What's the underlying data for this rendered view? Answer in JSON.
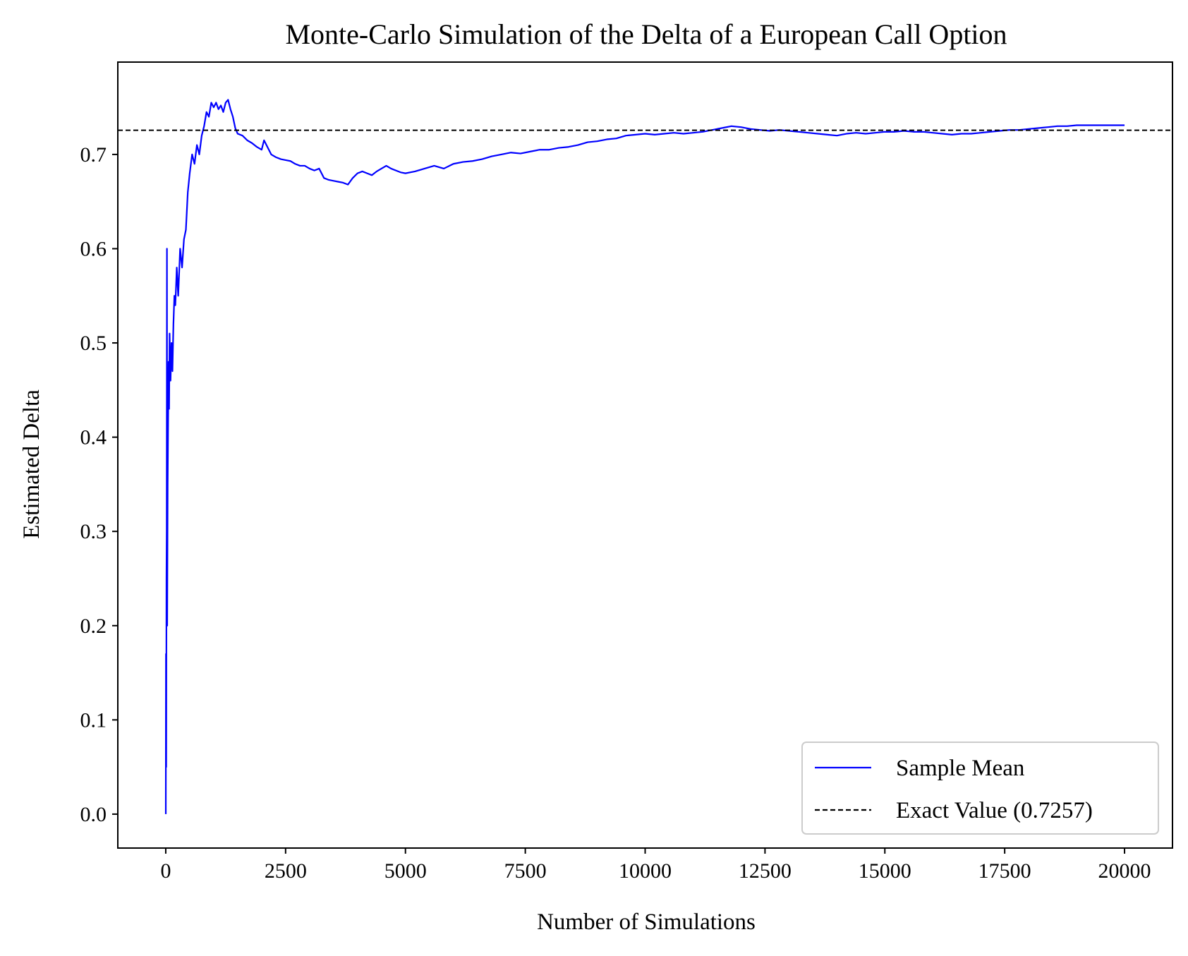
{
  "chart_data": {
    "type": "line",
    "title": "Monte-Carlo Simulation of the Delta of a European Call Option",
    "xlabel": "Number of Simulations",
    "ylabel": "Estimated Delta",
    "xlim": [
      -1000,
      21000
    ],
    "ylim": [
      -0.036,
      0.798
    ],
    "xticks": [
      0,
      2500,
      5000,
      7500,
      10000,
      12500,
      15000,
      17500,
      20000
    ],
    "xtick_labels": [
      "0",
      "2500",
      "5000",
      "7500",
      "10000",
      "12500",
      "15000",
      "17500",
      "20000"
    ],
    "yticks": [
      0.0,
      0.1,
      0.2,
      0.3,
      0.4,
      0.5,
      0.6,
      0.7
    ],
    "ytick_labels": [
      "0.0",
      "0.1",
      "0.2",
      "0.3",
      "0.4",
      "0.5",
      "0.6",
      "0.7"
    ],
    "grid": false,
    "legend_position": "lower-right",
    "series": [
      {
        "name": "Sample Mean",
        "color": "#0000ff",
        "style": "solid",
        "points": [
          [
            1,
            0.0
          ],
          [
            5,
            0.17
          ],
          [
            10,
            0.05
          ],
          [
            15,
            0.25
          ],
          [
            20,
            0.3
          ],
          [
            25,
            0.6
          ],
          [
            30,
            0.2
          ],
          [
            40,
            0.35
          ],
          [
            50,
            0.42
          ],
          [
            60,
            0.48
          ],
          [
            70,
            0.43
          ],
          [
            80,
            0.51
          ],
          [
            100,
            0.46
          ],
          [
            120,
            0.5
          ],
          [
            140,
            0.47
          ],
          [
            160,
            0.52
          ],
          [
            180,
            0.55
          ],
          [
            200,
            0.54
          ],
          [
            230,
            0.58
          ],
          [
            260,
            0.55
          ],
          [
            300,
            0.6
          ],
          [
            340,
            0.58
          ],
          [
            380,
            0.61
          ],
          [
            420,
            0.62
          ],
          [
            460,
            0.66
          ],
          [
            500,
            0.68
          ],
          [
            550,
            0.7
          ],
          [
            600,
            0.69
          ],
          [
            650,
            0.71
          ],
          [
            700,
            0.7
          ],
          [
            750,
            0.72
          ],
          [
            800,
            0.73
          ],
          [
            850,
            0.745
          ],
          [
            900,
            0.74
          ],
          [
            950,
            0.755
          ],
          [
            1000,
            0.75
          ],
          [
            1050,
            0.755
          ],
          [
            1100,
            0.748
          ],
          [
            1150,
            0.752
          ],
          [
            1200,
            0.745
          ],
          [
            1250,
            0.755
          ],
          [
            1300,
            0.758
          ],
          [
            1350,
            0.748
          ],
          [
            1400,
            0.74
          ],
          [
            1450,
            0.728
          ],
          [
            1500,
            0.722
          ],
          [
            1600,
            0.72
          ],
          [
            1700,
            0.715
          ],
          [
            1800,
            0.712
          ],
          [
            1900,
            0.708
          ],
          [
            2000,
            0.705
          ],
          [
            2050,
            0.715
          ],
          [
            2100,
            0.71
          ],
          [
            2200,
            0.7
          ],
          [
            2300,
            0.697
          ],
          [
            2400,
            0.695
          ],
          [
            2500,
            0.694
          ],
          [
            2600,
            0.693
          ],
          [
            2700,
            0.69
          ],
          [
            2800,
            0.688
          ],
          [
            2900,
            0.688
          ],
          [
            3000,
            0.685
          ],
          [
            3100,
            0.683
          ],
          [
            3200,
            0.685
          ],
          [
            3300,
            0.675
          ],
          [
            3400,
            0.673
          ],
          [
            3500,
            0.672
          ],
          [
            3600,
            0.671
          ],
          [
            3700,
            0.67
          ],
          [
            3800,
            0.668
          ],
          [
            3900,
            0.675
          ],
          [
            4000,
            0.68
          ],
          [
            4100,
            0.682
          ],
          [
            4200,
            0.68
          ],
          [
            4300,
            0.678
          ],
          [
            4400,
            0.682
          ],
          [
            4500,
            0.685
          ],
          [
            4600,
            0.688
          ],
          [
            4700,
            0.685
          ],
          [
            4800,
            0.683
          ],
          [
            4900,
            0.681
          ],
          [
            5000,
            0.68
          ],
          [
            5200,
            0.682
          ],
          [
            5400,
            0.685
          ],
          [
            5600,
            0.688
          ],
          [
            5800,
            0.685
          ],
          [
            6000,
            0.69
          ],
          [
            6200,
            0.692
          ],
          [
            6400,
            0.693
          ],
          [
            6600,
            0.695
          ],
          [
            6800,
            0.698
          ],
          [
            7000,
            0.7
          ],
          [
            7200,
            0.702
          ],
          [
            7400,
            0.701
          ],
          [
            7600,
            0.703
          ],
          [
            7800,
            0.705
          ],
          [
            8000,
            0.705
          ],
          [
            8200,
            0.707
          ],
          [
            8400,
            0.708
          ],
          [
            8600,
            0.71
          ],
          [
            8800,
            0.713
          ],
          [
            9000,
            0.714
          ],
          [
            9200,
            0.716
          ],
          [
            9400,
            0.717
          ],
          [
            9600,
            0.72
          ],
          [
            9800,
            0.721
          ],
          [
            10000,
            0.722
          ],
          [
            10200,
            0.721
          ],
          [
            10400,
            0.722
          ],
          [
            10600,
            0.723
          ],
          [
            10800,
            0.722
          ],
          [
            11000,
            0.723
          ],
          [
            11200,
            0.724
          ],
          [
            11400,
            0.726
          ],
          [
            11600,
            0.728
          ],
          [
            11800,
            0.73
          ],
          [
            12000,
            0.729
          ],
          [
            12200,
            0.727
          ],
          [
            12400,
            0.726
          ],
          [
            12600,
            0.725
          ],
          [
            12800,
            0.726
          ],
          [
            13000,
            0.725
          ],
          [
            13200,
            0.724
          ],
          [
            13400,
            0.723
          ],
          [
            13600,
            0.722
          ],
          [
            13800,
            0.721
          ],
          [
            14000,
            0.72
          ],
          [
            14200,
            0.722
          ],
          [
            14400,
            0.723
          ],
          [
            14600,
            0.722
          ],
          [
            14800,
            0.723
          ],
          [
            15000,
            0.724
          ],
          [
            15200,
            0.724
          ],
          [
            15400,
            0.725
          ],
          [
            15600,
            0.724
          ],
          [
            15800,
            0.724
          ],
          [
            16000,
            0.723
          ],
          [
            16200,
            0.722
          ],
          [
            16400,
            0.721
          ],
          [
            16600,
            0.722
          ],
          [
            16800,
            0.722
          ],
          [
            17000,
            0.723
          ],
          [
            17200,
            0.724
          ],
          [
            17400,
            0.725
          ],
          [
            17600,
            0.726
          ],
          [
            17800,
            0.726
          ],
          [
            18000,
            0.727
          ],
          [
            18200,
            0.728
          ],
          [
            18400,
            0.729
          ],
          [
            18600,
            0.73
          ],
          [
            18800,
            0.73
          ],
          [
            19000,
            0.731
          ],
          [
            19200,
            0.731
          ],
          [
            19400,
            0.731
          ],
          [
            19600,
            0.731
          ],
          [
            19800,
            0.731
          ],
          [
            20000,
            0.731
          ]
        ]
      },
      {
        "name": "Exact Value (0.7257)",
        "color": "#000000",
        "style": "dashed",
        "y": 0.7257
      }
    ]
  }
}
